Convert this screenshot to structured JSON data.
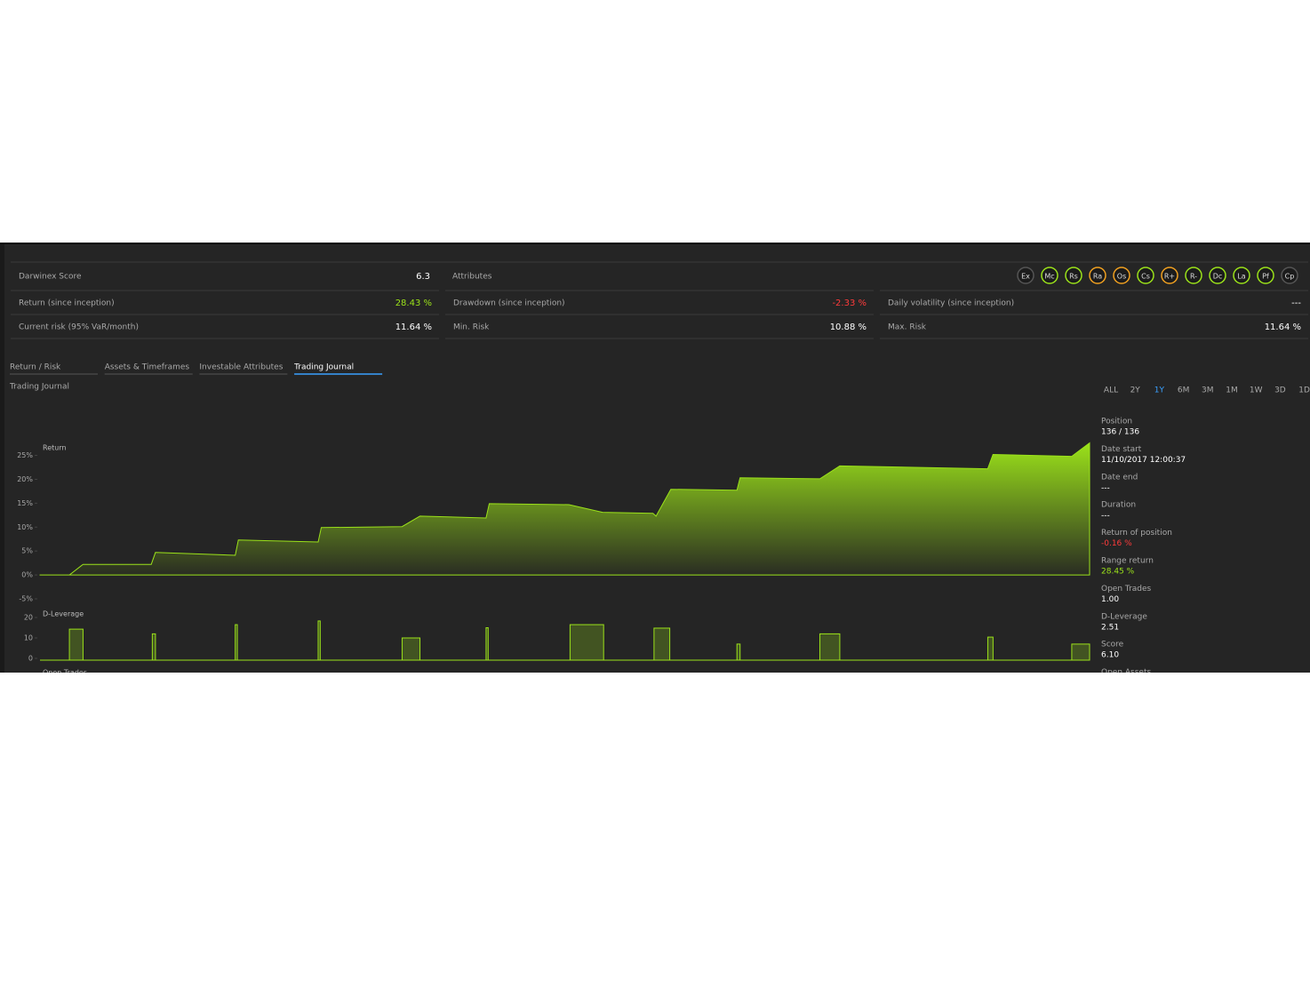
{
  "score": {
    "label": "Darwinex Score",
    "value": "6.3"
  },
  "attributes": {
    "label": "Attributes",
    "badges": [
      {
        "text": "Ex",
        "color": "#555555"
      },
      {
        "text": "Mc",
        "color": "#9be21a"
      },
      {
        "text": "Rs",
        "color": "#9be21a"
      },
      {
        "text": "Ra",
        "color": "#f0a020"
      },
      {
        "text": "Os",
        "color": "#f0a020"
      },
      {
        "text": "Cs",
        "color": "#9be21a"
      },
      {
        "text": "R+",
        "color": "#f0a020"
      },
      {
        "text": "R-",
        "color": "#9be21a"
      },
      {
        "text": "Dc",
        "color": "#9be21a"
      },
      {
        "text": "La",
        "color": "#9be21a"
      },
      {
        "text": "Pf",
        "color": "#9be21a"
      },
      {
        "text": "Cp",
        "color": "#555555"
      }
    ]
  },
  "metrics": [
    [
      {
        "label": "Return (since inception)",
        "value": "28.43 %",
        "color": "#9be21a"
      },
      {
        "label": "Drawdown (since inception)",
        "value": "-2.33 %",
        "color": "#ff3b3b"
      },
      {
        "label": "Daily volatility (since inception)",
        "value": "---",
        "color": "#ffffff"
      }
    ],
    [
      {
        "label": "Current risk (95% VaR/month)",
        "value": "11.64 %",
        "color": "#ffffff"
      },
      {
        "label": "Min. Risk",
        "value": "10.88 %",
        "color": "#ffffff"
      },
      {
        "label": "Max. Risk",
        "value": "11.64 %",
        "color": "#ffffff"
      }
    ]
  ],
  "tabs": {
    "items": [
      "Return / Risk",
      "Assets & Timeframes",
      "Investable Attributes",
      "Trading Journal"
    ],
    "active": 3
  },
  "section_title": "Trading Journal",
  "ranges": {
    "items": [
      "ALL",
      "2Y",
      "1Y",
      "6M",
      "3M",
      "1M",
      "1W",
      "3D",
      "1D"
    ],
    "active": 2
  },
  "chart_data": [
    {
      "type": "area",
      "title": "Return",
      "color": "#9be21a",
      "xlim": [
        0,
        100
      ],
      "x": [
        0,
        2.8,
        4.1,
        10.6,
        11.0,
        18.6,
        18.9,
        26.5,
        26.8,
        34.5,
        36.2,
        42.5,
        42.8,
        50.4,
        53.6,
        58.4,
        58.7,
        60.1,
        66.4,
        66.7,
        74.3,
        76.2,
        90.3,
        90.8,
        98.3,
        100
      ],
      "values": [
        0,
        0,
        2.2,
        2.2,
        4.7,
        4.1,
        7.3,
        6.9,
        9.9,
        10.1,
        12.3,
        11.9,
        14.9,
        14.7,
        13.1,
        12.9,
        12.3,
        17.9,
        17.7,
        20.3,
        20.1,
        22.8,
        22.2,
        25.2,
        24.8,
        27.6
      ],
      "ylim": [
        -5,
        29
      ],
      "yticks": [
        {
          "value": -5,
          "label": "-5%"
        },
        {
          "value": 0,
          "label": "0%"
        },
        {
          "value": 5,
          "label": "5%"
        },
        {
          "value": 10,
          "label": "10%"
        },
        {
          "value": 15,
          "label": "15%"
        },
        {
          "value": 20,
          "label": "20%"
        },
        {
          "value": 25,
          "label": "25%"
        }
      ]
    },
    {
      "type": "interval-bar",
      "title": "D-Leverage",
      "color": "#9be21a",
      "xlim": [
        0,
        100
      ],
      "x_start": [
        2.8,
        10.7,
        18.6,
        26.5,
        34.5,
        42.5,
        50.5,
        58.5,
        66.4,
        74.3,
        90.3,
        98.3
      ],
      "x_end": [
        4.1,
        11.0,
        18.8,
        26.7,
        36.2,
        42.7,
        53.7,
        60.0,
        66.7,
        76.2,
        90.8,
        100
      ],
      "values": [
        14.3,
        12,
        16.5,
        18.3,
        10,
        15,
        16.5,
        14.8,
        7,
        12,
        10.4,
        7
      ],
      "ylim": [
        0,
        20
      ],
      "yticks": [
        0,
        10,
        20
      ]
    },
    {
      "type": "interval-bar",
      "title": "Open Trades"
    }
  ],
  "details": [
    {
      "label": "Position",
      "value": "136 / 136",
      "color": "#ffffff"
    },
    {
      "label": "Date start",
      "value": "11/10/2017 12:00:37",
      "color": "#ffffff"
    },
    {
      "label": "Date end",
      "value": "---",
      "color": "#ffffff"
    },
    {
      "label": "Duration",
      "value": "---",
      "color": "#ffffff"
    },
    {
      "label": "Return of position",
      "value": "-0.16 %",
      "color": "#ff3b3b"
    },
    {
      "label": "Range return",
      "value": "28.45 %",
      "color": "#9be21a"
    },
    {
      "label": "Open Trades",
      "value": "1.00",
      "color": "#ffffff"
    },
    {
      "label": "D-Leverage",
      "value": "2.51",
      "color": "#ffffff"
    },
    {
      "label": "Score",
      "value": "6.10",
      "color": "#ffffff"
    },
    {
      "label": "Open Assets"
    }
  ]
}
